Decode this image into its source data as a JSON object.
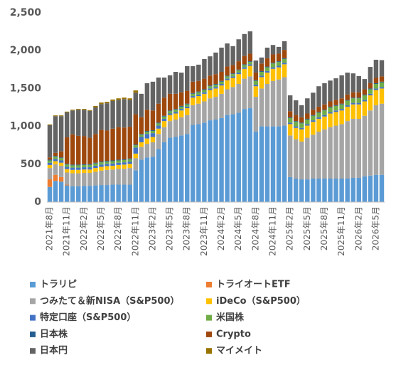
{
  "chart_data": {
    "type": "stacked_bar",
    "categories": [
      "2021年8月",
      null,
      null,
      "2021年11月",
      null,
      null,
      "2022年2月",
      null,
      null,
      "2022年5月",
      null,
      null,
      "2022年8月",
      null,
      null,
      "2022年11月",
      null,
      null,
      "2023年2月",
      null,
      null,
      "2023年5月",
      null,
      null,
      "2023年8月",
      null,
      null,
      "2023年11月",
      null,
      null,
      "2024年2月",
      null,
      null,
      "2024年5月",
      null,
      null,
      "2024年8月",
      null,
      null,
      "2024年11月",
      null,
      null,
      "2025年2月",
      null,
      null,
      "2025年5月",
      null,
      null,
      "2025年8月",
      null,
      null,
      "2025年11月",
      null,
      null,
      "2026年2月",
      null,
      null,
      "2026年5月",
      null
    ],
    "series": [
      {
        "name": "トラリピ",
        "color": "#5b9bd5",
        "values": [
          200,
          280,
          270,
          220,
          210,
          210,
          215,
          215,
          220,
          225,
          225,
          230,
          230,
          230,
          230,
          420,
          560,
          590,
          600,
          700,
          790,
          850,
          860,
          880,
          900,
          1020,
          1030,
          1050,
          1080,
          1090,
          1110,
          1150,
          1160,
          1180,
          1230,
          1240,
          930,
          1000,
          1000,
          1000,
          1000,
          1010,
          330,
          310,
          300,
          300,
          310,
          310,
          310,
          310,
          310,
          310,
          310,
          320,
          320,
          340,
          350,
          360,
          360
        ]
      },
      {
        "name": "トライオートETF",
        "color": "#ed7d31",
        "values": [
          100,
          80,
          60,
          10,
          0,
          0,
          0,
          0,
          0,
          0,
          0,
          0,
          0,
          0,
          0,
          0,
          0,
          0,
          0,
          0,
          0,
          0,
          0,
          0,
          0,
          0,
          0,
          0,
          0,
          0,
          0,
          0,
          0,
          0,
          0,
          0,
          0,
          0,
          0,
          0,
          0,
          0,
          0,
          0,
          0,
          0,
          0,
          0,
          0,
          0,
          0,
          0,
          0,
          0,
          0,
          0,
          0,
          0,
          0
        ]
      },
      {
        "name": "つみたて＆新NISA（S&P500）",
        "color": "#a5a5a5",
        "values": [
          150,
          140,
          150,
          160,
          170,
          170,
          170,
          170,
          180,
          190,
          200,
          200,
          210,
          210,
          220,
          160,
          170,
          180,
          190,
          200,
          200,
          220,
          230,
          240,
          250,
          260,
          270,
          280,
          290,
          300,
          320,
          340,
          360,
          380,
          400,
          420,
          460,
          500,
          560,
          600,
          620,
          640,
          550,
          520,
          500,
          550,
          580,
          620,
          650,
          680,
          700,
          720,
          760,
          780,
          780,
          800,
          860,
          920,
          940
        ]
      },
      {
        "name": "iDeCo（S&P500）",
        "color": "#ffc000",
        "values": [
          40,
          40,
          40,
          45,
          45,
          45,
          45,
          45,
          50,
          50,
          50,
          50,
          50,
          55,
          55,
          60,
          60,
          70,
          70,
          70,
          80,
          80,
          80,
          90,
          90,
          100,
          100,
          100,
          110,
          110,
          110,
          120,
          120,
          130,
          130,
          140,
          140,
          150,
          150,
          160,
          160,
          170,
          150,
          150,
          160,
          160,
          170,
          170,
          170,
          180,
          180,
          180,
          190,
          190,
          190,
          190,
          200,
          200,
          200
        ]
      },
      {
        "name": "特定口座（S&P500）",
        "color": "#4472c4",
        "values": [
          30,
          30,
          30,
          30,
          30,
          30,
          30,
          30,
          30,
          30,
          30,
          30,
          30,
          30,
          30,
          80,
          70,
          60,
          50,
          40,
          30,
          20,
          20,
          20,
          20,
          20,
          20,
          20,
          20,
          20,
          20,
          20,
          20,
          20,
          20,
          20,
          20,
          20,
          20,
          20,
          20,
          20,
          20,
          20,
          20,
          20,
          20,
          20,
          20,
          20,
          20,
          20,
          20,
          20,
          20,
          20,
          20,
          20,
          20
        ]
      },
      {
        "name": "米国株",
        "color": "#70ad47",
        "values": [
          30,
          30,
          30,
          30,
          30,
          30,
          30,
          30,
          30,
          30,
          30,
          30,
          30,
          30,
          30,
          30,
          30,
          30,
          30,
          30,
          30,
          30,
          30,
          30,
          30,
          30,
          30,
          30,
          30,
          30,
          30,
          30,
          30,
          30,
          30,
          30,
          50,
          50,
          50,
          50,
          50,
          50,
          60,
          60,
          60,
          60,
          60,
          60,
          60,
          60,
          60,
          60,
          60,
          60,
          60,
          60,
          60,
          60,
          60
        ]
      },
      {
        "name": "日本株",
        "color": "#255e91",
        "values": [
          10,
          10,
          10,
          10,
          10,
          10,
          10,
          10,
          10,
          10,
          10,
          10,
          10,
          10,
          10,
          10,
          10,
          10,
          10,
          10,
          10,
          10,
          10,
          10,
          10,
          10,
          10,
          10,
          10,
          10,
          10,
          10,
          10,
          10,
          10,
          10,
          10,
          10,
          10,
          10,
          10,
          10,
          10,
          10,
          10,
          10,
          10,
          10,
          10,
          10,
          10,
          10,
          10,
          10,
          10,
          10,
          10,
          10,
          10
        ]
      },
      {
        "name": "Crypto",
        "color": "#9e480e",
        "values": [
          30,
          40,
          80,
          350,
          400,
          380,
          370,
          350,
          380,
          420,
          400,
          420,
          430,
          420,
          420,
          400,
          220,
          280,
          260,
          250,
          240,
          220,
          200,
          180,
          170,
          150,
          140,
          140,
          130,
          130,
          120,
          120,
          110,
          110,
          110,
          100,
          100,
          100,
          110,
          110,
          100,
          110,
          80,
          80,
          70,
          70,
          70,
          70,
          70,
          70,
          70,
          70,
          70,
          70,
          70,
          70,
          70,
          70,
          70
        ]
      },
      {
        "name": "日本円",
        "color": "#636363",
        "values": [
          425,
          485,
          465,
          330,
          315,
          345,
          350,
          355,
          350,
          340,
          360,
          365,
          360,
          375,
          355,
          285,
          310,
          350,
          380,
          345,
          265,
          245,
          290,
          260,
          325,
          205,
          215,
          260,
          255,
          285,
          320,
          305,
          250,
          290,
          290,
          295,
          160,
          80,
          140,
          125,
          90,
          115,
          210,
          195,
          160,
          200,
          225,
          270,
          280,
          275,
          285,
          305,
          290,
          250,
          215,
          135,
          215,
          240,
          215
        ]
      },
      {
        "name": "マイメイト",
        "color": "#997300",
        "values": [
          10,
          10,
          10,
          10,
          10,
          10,
          10,
          10,
          20,
          20,
          20,
          20,
          20,
          20,
          20,
          30,
          0,
          0,
          0,
          0,
          0,
          0,
          0,
          0,
          0,
          0,
          0,
          0,
          0,
          0,
          0,
          0,
          0,
          0,
          0,
          0,
          0,
          0,
          0,
          0,
          0,
          0,
          0,
          0,
          0,
          0,
          0,
          0,
          0,
          0,
          0,
          0,
          0,
          0,
          0,
          0,
          0,
          0,
          0
        ]
      }
    ],
    "ylim": [
      0,
      2500
    ],
    "yticks": [
      0,
      500,
      {
        "value": 1000,
        "label": "1,000"
      },
      {
        "value": 1500,
        "label": "1,500"
      },
      {
        "value": 2000,
        "label": "2,000"
      },
      {
        "value": 2500,
        "label": "2,500"
      }
    ],
    "grid": false,
    "legend": "bottom"
  }
}
